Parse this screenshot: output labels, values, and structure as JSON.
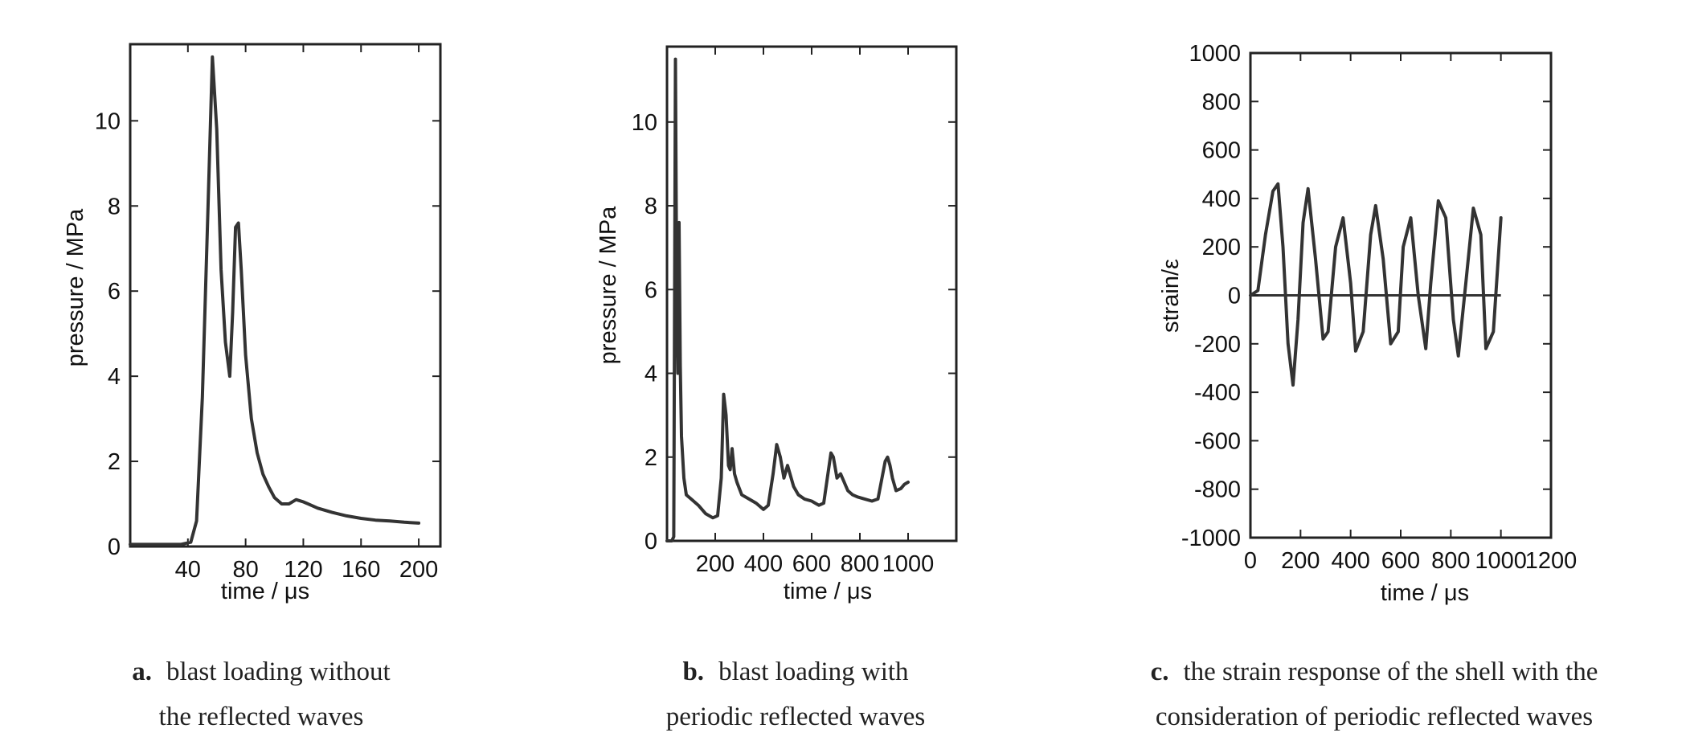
{
  "chart_data": [
    {
      "type": "line",
      "xlabel": "time / μs",
      "ylabel": "pressure / MPa",
      "xlim": [
        0,
        215
      ],
      "ylim": [
        0,
        11.8
      ],
      "xticks": [
        40,
        80,
        120,
        160,
        200
      ],
      "yticks": [
        0,
        2,
        4,
        6,
        8,
        10
      ],
      "series": [
        {
          "x": [
            0,
            20,
            35,
            42,
            46,
            50,
            54,
            57,
            60,
            63,
            66,
            69,
            71,
            73,
            75,
            77,
            80,
            84,
            88,
            92,
            96,
            100,
            105,
            110,
            115,
            120,
            130,
            140,
            150,
            160,
            170,
            180,
            190,
            200
          ],
          "values": [
            0.05,
            0.05,
            0.05,
            0.1,
            0.6,
            3.5,
            8.0,
            11.5,
            9.8,
            6.5,
            4.8,
            4.0,
            5.5,
            7.5,
            7.6,
            6.5,
            4.5,
            3.0,
            2.2,
            1.7,
            1.4,
            1.15,
            1.0,
            1.0,
            1.1,
            1.05,
            0.9,
            0.8,
            0.72,
            0.66,
            0.62,
            0.6,
            0.57,
            0.55
          ]
        }
      ]
    },
    {
      "type": "line",
      "xlabel": "time / μs",
      "ylabel": "pressure / MPa",
      "xlim": [
        0,
        1200
      ],
      "ylim": [
        0,
        11.8
      ],
      "xticks": [
        200,
        400,
        600,
        800,
        1000
      ],
      "yticks": [
        0,
        2,
        4,
        6,
        8,
        10
      ],
      "series": [
        {
          "x": [
            0,
            20,
            28,
            35,
            40,
            45,
            50,
            55,
            60,
            70,
            80,
            100,
            130,
            160,
            190,
            210,
            225,
            235,
            245,
            255,
            262,
            270,
            280,
            290,
            310,
            340,
            370,
            400,
            420,
            440,
            455,
            470,
            485,
            500,
            510,
            525,
            545,
            570,
            600,
            630,
            650,
            665,
            680,
            690,
            705,
            720,
            735,
            750,
            770,
            790,
            820,
            850,
            875,
            895,
            905,
            915,
            925,
            935,
            950,
            970,
            985,
            1000
          ],
          "values": [
            0.0,
            0.0,
            0.1,
            11.5,
            6.0,
            4.0,
            7.6,
            4.2,
            2.5,
            1.5,
            1.1,
            1.0,
            0.85,
            0.65,
            0.55,
            0.6,
            1.5,
            3.5,
            3.0,
            1.8,
            1.7,
            2.2,
            1.6,
            1.4,
            1.1,
            1.0,
            0.9,
            0.75,
            0.85,
            1.6,
            2.3,
            2.0,
            1.5,
            1.8,
            1.6,
            1.3,
            1.1,
            1.0,
            0.95,
            0.85,
            0.9,
            1.5,
            2.1,
            2.0,
            1.5,
            1.6,
            1.4,
            1.2,
            1.1,
            1.05,
            1.0,
            0.95,
            1.0,
            1.6,
            1.9,
            2.0,
            1.8,
            1.5,
            1.2,
            1.25,
            1.35,
            1.4
          ]
        }
      ]
    },
    {
      "type": "line",
      "xlabel": "time / μs",
      "ylabel": "strain/ε",
      "xlim": [
        0,
        1200
      ],
      "ylim": [
        -1000,
        1000
      ],
      "xticks": [
        0,
        200,
        400,
        600,
        800,
        1000,
        1200
      ],
      "yticks": [
        -1000,
        -800,
        -600,
        -400,
        -200,
        0,
        200,
        400,
        600,
        800,
        1000
      ],
      "series": [
        {
          "x": [
            0,
            30,
            60,
            90,
            110,
            130,
            150,
            170,
            190,
            210,
            230,
            260,
            290,
            310,
            340,
            370,
            400,
            420,
            450,
            480,
            500,
            530,
            560,
            590,
            610,
            640,
            670,
            700,
            720,
            750,
            780,
            810,
            830,
            860,
            890,
            920,
            940,
            970,
            1000
          ],
          "values": [
            0,
            20,
            250,
            430,
            460,
            200,
            -200,
            -370,
            -100,
            300,
            440,
            150,
            -180,
            -150,
            200,
            320,
            50,
            -230,
            -150,
            250,
            370,
            150,
            -200,
            -150,
            200,
            320,
            0,
            -220,
            50,
            390,
            320,
            -100,
            -250,
            50,
            360,
            250,
            -220,
            -150,
            320
          ]
        }
      ]
    }
  ],
  "captions": {
    "a": {
      "letter": "a.",
      "text": "blast loading without",
      "text2": "the reflected waves"
    },
    "b": {
      "letter": "b.",
      "text": "blast loading with",
      "text2": "periodic reflected waves"
    },
    "c": {
      "letter": "c.",
      "text": "the strain response of the shell with the",
      "text2": "consideration of periodic reflected waves"
    }
  }
}
